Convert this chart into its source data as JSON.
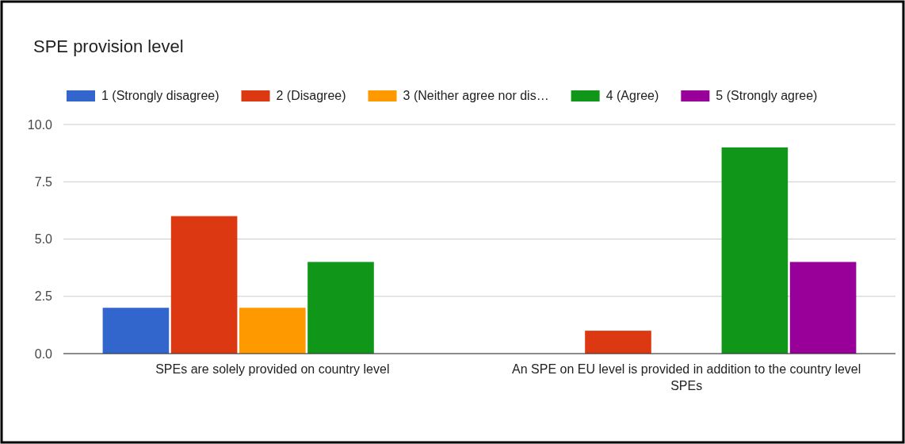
{
  "chart_data": {
    "type": "bar",
    "title": "SPE provision level",
    "categories": [
      "SPEs are solely provided on country level",
      "An SPE on EU level is provided in addition to the country level SPEs"
    ],
    "series": [
      {
        "name": "1 (Strongly disagree)",
        "color": "#3366cc",
        "values": [
          2,
          0
        ]
      },
      {
        "name": "2 (Disagree)",
        "color": "#dc3912",
        "values": [
          6,
          1
        ]
      },
      {
        "name": "3 (Neither agree nor dis…",
        "color": "#ff9900",
        "values": [
          2,
          0
        ]
      },
      {
        "name": "4 (Agree)",
        "color": "#109618",
        "values": [
          4,
          9
        ]
      },
      {
        "name": "5 (Strongly agree)",
        "color": "#990099",
        "values": [
          0,
          4
        ]
      }
    ],
    "ylim": [
      0,
      10
    ],
    "yticks": [
      {
        "value": 0,
        "label": "0.0"
      },
      {
        "value": 2.5,
        "label": "2.5"
      },
      {
        "value": 5,
        "label": "5.0"
      },
      {
        "value": 7.5,
        "label": "7.5"
      },
      {
        "value": 10,
        "label": "10.0"
      }
    ],
    "grid": "y",
    "legend": "top"
  }
}
